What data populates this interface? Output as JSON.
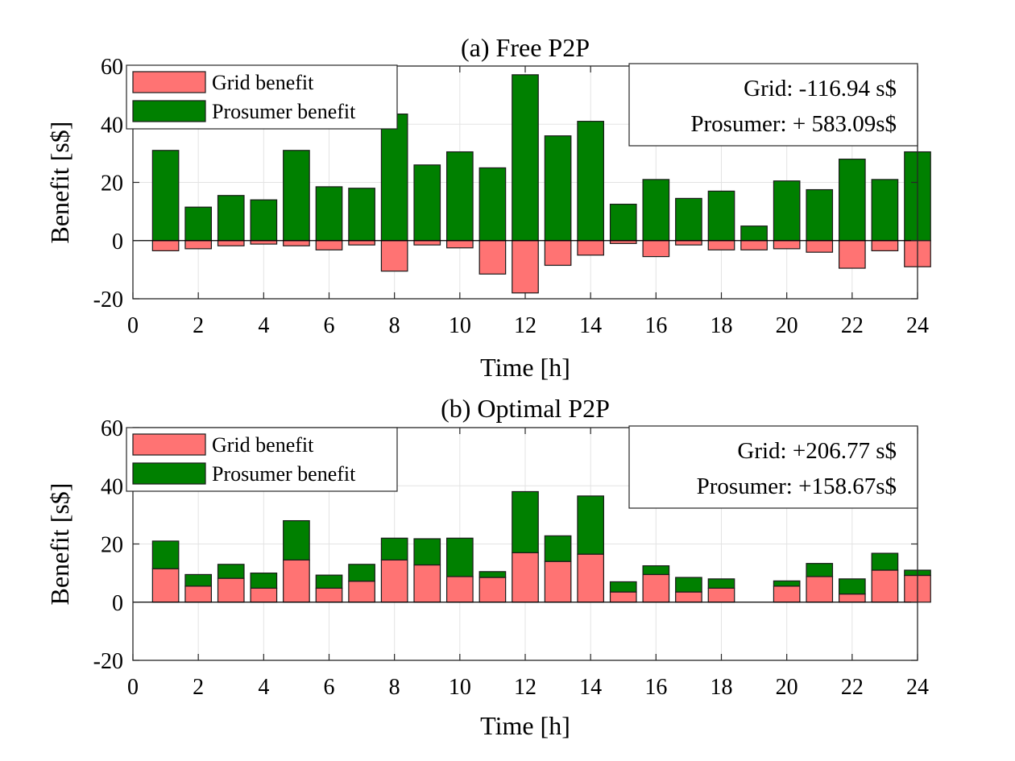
{
  "colors": {
    "grid": "#ff7373",
    "prosumer": "#008000"
  },
  "chart_data": [
    {
      "type": "bar",
      "id": "free",
      "title": "(a) Free P2P",
      "xlabel": "Time [h]",
      "ylabel": "Benefit [s$]",
      "xlim": [
        0,
        24
      ],
      "ylim": [
        -20,
        60
      ],
      "xticks": [
        0,
        2,
        4,
        6,
        8,
        10,
        12,
        14,
        16,
        18,
        20,
        22,
        24
      ],
      "yticks": [
        -20,
        0,
        20,
        40,
        60
      ],
      "grid": true,
      "legend": [
        "Grid benefit",
        "Prosumer benefit"
      ],
      "legend_position": "top-left",
      "annotation": [
        "Grid: -116.94 s$",
        "Prosumer: + 583.09s$"
      ],
      "annotation_position": "top-right",
      "x": [
        1,
        2,
        3,
        4,
        5,
        6,
        7,
        8,
        9,
        10,
        11,
        12,
        13,
        14,
        15,
        16,
        17,
        18,
        19,
        20,
        21,
        22,
        23,
        24
      ],
      "series": [
        {
          "name": "Grid benefit",
          "values": [
            -3.5,
            -2.8,
            -1.8,
            -1.2,
            -1.8,
            -3.2,
            -1.5,
            -10.5,
            -1.5,
            -2.5,
            -11.5,
            -18.0,
            -8.5,
            -5.0,
            -1.0,
            -5.5,
            -1.5,
            -3.2,
            -3.2,
            -2.8,
            -4.0,
            -9.5,
            -3.5,
            -9.0
          ]
        },
        {
          "name": "Prosumer benefit",
          "values": [
            31,
            11.5,
            15.5,
            14,
            31,
            18.5,
            18,
            43.5,
            26,
            30.5,
            25,
            57,
            36,
            41,
            12.5,
            21,
            14.5,
            17,
            5,
            20.5,
            17.5,
            28,
            21,
            30.5
          ]
        }
      ]
    },
    {
      "type": "bar",
      "id": "optimal",
      "title": "(b) Optimal P2P",
      "xlabel": "Time [h]",
      "ylabel": "Benefit [s$]",
      "xlim": [
        0,
        24
      ],
      "ylim": [
        -20,
        60
      ],
      "xticks": [
        0,
        2,
        4,
        6,
        8,
        10,
        12,
        14,
        16,
        18,
        20,
        22,
        24
      ],
      "yticks": [
        -20,
        0,
        20,
        40,
        60
      ],
      "grid": true,
      "legend": [
        "Grid benefit",
        "Prosumer benefit"
      ],
      "legend_position": "top-left",
      "annotation": [
        "Grid: +206.77 s$",
        "Prosumer: +158.67s$"
      ],
      "annotation_position": "top-right",
      "stacked": true,
      "x": [
        1,
        2,
        3,
        4,
        5,
        6,
        7,
        8,
        9,
        10,
        11,
        12,
        13,
        14,
        15,
        16,
        17,
        18,
        19,
        20,
        21,
        22,
        23,
        24
      ],
      "series": [
        {
          "name": "Grid benefit",
          "values": [
            11.5,
            5.5,
            8.2,
            4.8,
            14.5,
            4.8,
            7.2,
            14.5,
            12.8,
            8.8,
            8.5,
            17,
            14,
            16.5,
            3.5,
            9.5,
            3.5,
            4.8,
            0,
            5.5,
            8.8,
            2.8,
            11,
            9.2
          ]
        },
        {
          "name": "Prosumer benefit",
          "values": [
            9.5,
            4,
            4.8,
            5.2,
            13.5,
            4.5,
            5.8,
            7.5,
            9,
            13.2,
            2,
            21,
            8.8,
            20,
            3.5,
            3,
            5,
            3.2,
            0,
            1.8,
            4.5,
            5.2,
            5.8,
            1.8
          ]
        }
      ]
    }
  ]
}
